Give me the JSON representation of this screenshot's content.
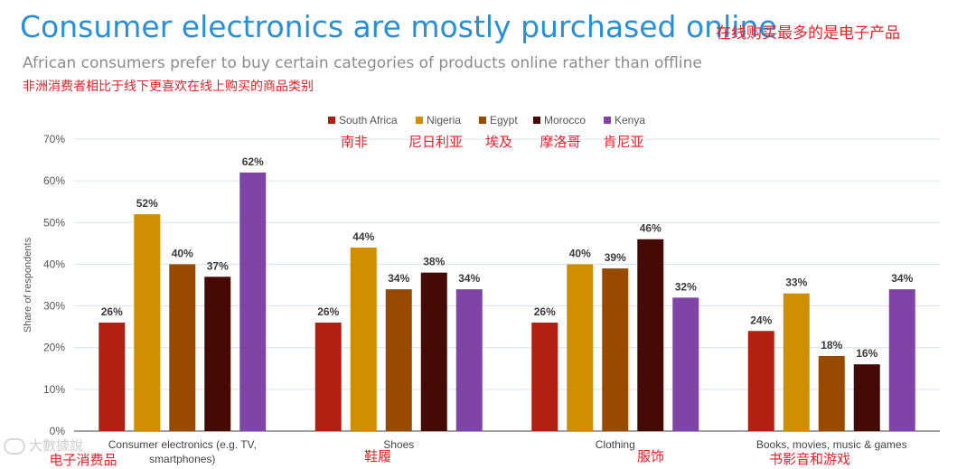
{
  "title": "Consumer electronics are mostly purchased online",
  "title_annotation": "在线购买最多的是电子产品",
  "subtitle": "African consumers prefer to buy certain categories of products online rather than offline",
  "subtitle_annotation": "非洲消费者相比于线下更喜欢在线上购买的商品类别",
  "watermark": "大數據說",
  "chart_data": {
    "type": "bar",
    "ylabel": "Share of respondents",
    "ylim": [
      0,
      70
    ],
    "yticks": [
      "0%",
      "10%",
      "20%",
      "30%",
      "40%",
      "50%",
      "60%",
      "70%"
    ],
    "grid": true,
    "legend_position": "top",
    "categories": [
      "Consumer electronics (e.g. TV, smartphones)",
      "Shoes",
      "Clothing",
      "Books, movies, music & games"
    ],
    "category_annotations": [
      "电子消费品",
      "鞋履",
      "服饰",
      "书影音和游戏"
    ],
    "series": [
      {
        "name": "South Africa",
        "name_annotation": "南非",
        "color": "#b01f0f",
        "values": [
          26,
          26,
          26,
          24
        ]
      },
      {
        "name": "Nigeria",
        "name_annotation": "尼日利亚",
        "color": "#cf8f00",
        "values": [
          52,
          44,
          40,
          33
        ]
      },
      {
        "name": "Egypt",
        "name_annotation": "埃及",
        "color": "#974a00",
        "values": [
          40,
          34,
          39,
          18
        ]
      },
      {
        "name": "Morocco",
        "name_annotation": "摩洛哥",
        "color": "#460a06",
        "values": [
          37,
          38,
          46,
          16
        ]
      },
      {
        "name": "Kenya",
        "name_annotation": "肯尼亚",
        "color": "#7f44a6",
        "values": [
          62,
          34,
          32,
          34
        ]
      }
    ]
  }
}
